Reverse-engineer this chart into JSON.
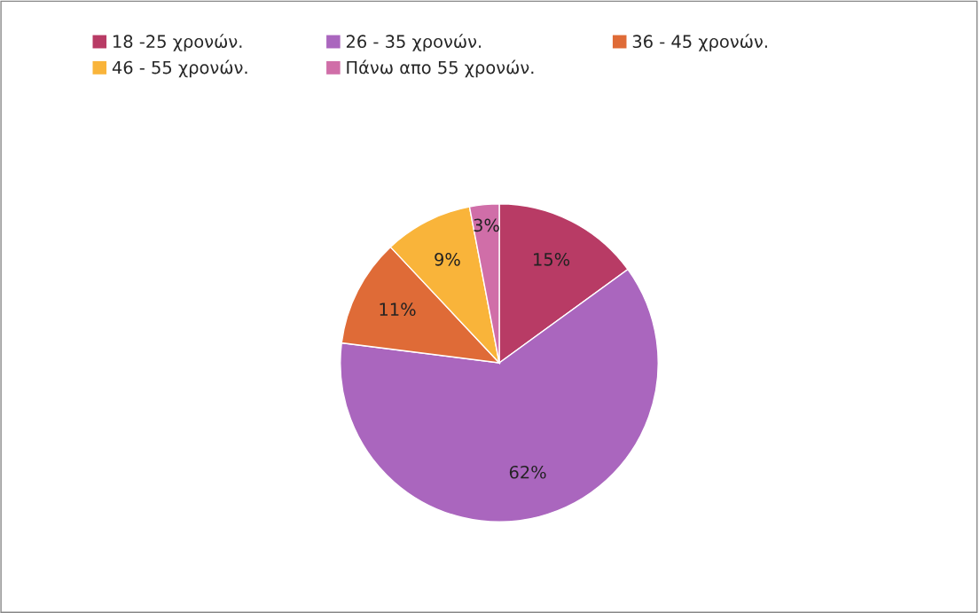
{
  "chart_data": {
    "type": "pie",
    "categories": [
      "18 -25 χρονών.",
      "26 - 35 χρονών.",
      "36 - 45 χρονών.",
      "46 - 55 χρονών.",
      "Πάνω απο 55 χρονών."
    ],
    "values": [
      15,
      62,
      11,
      9,
      3
    ],
    "colors": [
      "#b83b65",
      "#aa66be",
      "#df6b37",
      "#f9b43a",
      "#d06ea8"
    ],
    "value_labels": [
      "15%",
      "62%",
      "11%",
      "9%",
      "3%"
    ],
    "legend": "top"
  }
}
